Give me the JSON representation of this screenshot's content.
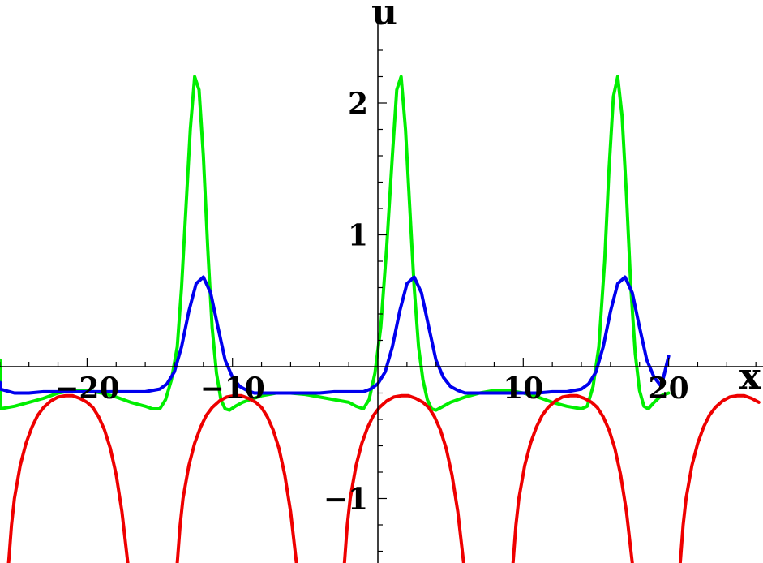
{
  "chart_data": {
    "type": "line",
    "xlabel": "x",
    "ylabel": "u",
    "xlim": [
      -27.2,
      27.0
    ],
    "ylim": [
      -1.5,
      2.5
    ],
    "x_ticks": [
      -20,
      -10,
      10,
      20
    ],
    "x_tick_labels": [
      "−20",
      "−10",
      "10",
      "20"
    ],
    "y_ticks": [
      -1,
      1,
      2
    ],
    "y_tick_labels": [
      "−1",
      "1",
      "2"
    ],
    "grid": false,
    "legend": "none",
    "series": [
      {
        "color": "#00ee00",
        "x": [
          -27,
          -26.8,
          -26.5,
          -26,
          -25,
          -24,
          -23,
          -22,
          -21,
          -20,
          -19,
          -18,
          -17,
          -16,
          -15.5,
          -15,
          -14.6,
          -14.2,
          -13.8,
          -13.5,
          -13.2,
          -12.9,
          -12.6,
          -12.3,
          -12.0,
          -11.7,
          -11.4,
          -11.1,
          -10.8,
          -10.5,
          -10.2,
          -9.8,
          -9.3,
          -8.8,
          -8,
          -7,
          -6,
          -5,
          -4,
          -3,
          -2,
          -1.5,
          -1,
          -0.6,
          -0.2,
          0.2,
          0.6,
          1.0,
          1.3,
          1.6,
          1.9,
          2.2,
          2.5,
          2.8,
          3.1,
          3.4,
          3.7,
          4.0,
          4.5,
          5,
          6,
          7,
          8,
          9,
          10,
          11,
          12,
          13,
          14,
          14.4,
          14.8,
          15.2,
          15.6,
          15.9,
          16.2,
          16.5,
          16.8,
          17.1,
          17.4,
          17.7,
          18.0,
          18.3,
          18.6,
          19.0,
          19.5,
          20
        ],
        "y": [
          0.05,
          -0.1,
          -0.25,
          -0.32,
          -0.3,
          -0.27,
          -0.24,
          -0.2,
          -0.18,
          -0.18,
          -0.2,
          -0.23,
          -0.27,
          -0.3,
          -0.32,
          -0.32,
          -0.25,
          -0.1,
          0.15,
          0.6,
          1.2,
          1.8,
          2.2,
          2.1,
          1.6,
          0.9,
          0.3,
          -0.05,
          -0.25,
          -0.32,
          -0.33,
          -0.3,
          -0.27,
          -0.25,
          -0.22,
          -0.2,
          -0.2,
          -0.21,
          -0.23,
          -0.25,
          -0.27,
          -0.3,
          -0.32,
          -0.25,
          -0.05,
          0.3,
          0.9,
          1.6,
          2.1,
          2.2,
          1.8,
          1.2,
          0.6,
          0.15,
          -0.1,
          -0.25,
          -0.32,
          -0.33,
          -0.3,
          -0.27,
          -0.23,
          -0.2,
          -0.18,
          -0.18,
          -0.2,
          -0.23,
          -0.27,
          -0.3,
          -0.32,
          -0.3,
          -0.15,
          0.15,
          0.8,
          1.5,
          2.05,
          2.2,
          1.9,
          1.3,
          0.6,
          0.1,
          -0.18,
          -0.3,
          -0.32,
          -0.27,
          -0.22,
          -0.2
        ]
      },
      {
        "color": "#0000ee",
        "x": [
          -27,
          -26,
          -25,
          -24,
          -23,
          -22,
          -21,
          -20,
          -19,
          -18,
          -17,
          -16,
          -15,
          -14.5,
          -14,
          -13.5,
          -13,
          -12.5,
          -12,
          -11.5,
          -11,
          -10.5,
          -10,
          -9.5,
          -9,
          -8.5,
          -8,
          -7,
          -6,
          -5,
          -4,
          -3,
          -2,
          -1,
          -0.5,
          0,
          0.5,
          1,
          1.5,
          2,
          2.5,
          3,
          3.5,
          4,
          4.5,
          5,
          5.5,
          6,
          6.5,
          7,
          8,
          9,
          10,
          11,
          12,
          13,
          14,
          14.5,
          15,
          15.5,
          16,
          16.5,
          17,
          17.5,
          18,
          18.5,
          19,
          19.5,
          20
        ],
        "y": [
          -0.12,
          -0.17,
          -0.2,
          -0.2,
          -0.19,
          -0.19,
          -0.19,
          -0.19,
          -0.19,
          -0.19,
          -0.19,
          -0.19,
          -0.17,
          -0.13,
          -0.04,
          0.15,
          0.42,
          0.63,
          0.68,
          0.56,
          0.3,
          0.05,
          -0.08,
          -0.15,
          -0.18,
          -0.2,
          -0.2,
          -0.2,
          -0.2,
          -0.2,
          -0.2,
          -0.19,
          -0.19,
          -0.19,
          -0.17,
          -0.13,
          -0.04,
          0.15,
          0.42,
          0.63,
          0.68,
          0.56,
          0.3,
          0.05,
          -0.08,
          -0.15,
          -0.18,
          -0.2,
          -0.2,
          -0.2,
          -0.2,
          -0.2,
          -0.2,
          -0.2,
          -0.19,
          -0.19,
          -0.17,
          -0.13,
          -0.04,
          0.15,
          0.42,
          0.63,
          0.68,
          0.56,
          0.3,
          0.05,
          -0.08,
          -0.15,
          0.08
        ]
      },
      {
        "color": "#ee0000",
        "segments": [
          {
            "x": [
              -25.4,
              -25.2,
              -25,
              -24.6,
              -24.2,
              -23.8,
              -23.4,
              -23,
              -22.5,
              -22,
              -21.5,
              -21,
              -20.5,
              -20,
              -19.6,
              -19.2,
              -18.8,
              -18.4,
              -18,
              -17.6,
              -17.2
            ],
            "y": [
              -1.5,
              -1.2,
              -1.0,
              -0.75,
              -0.58,
              -0.46,
              -0.37,
              -0.31,
              -0.26,
              -0.23,
              -0.22,
              -0.22,
              -0.24,
              -0.27,
              -0.31,
              -0.38,
              -0.48,
              -0.62,
              -0.82,
              -1.1,
              -1.5
            ]
          },
          {
            "x": [
              -13.8,
              -13.6,
              -13.4,
              -13,
              -12.6,
              -12.2,
              -11.8,
              -11.4,
              -10.9,
              -10.4,
              -9.9,
              -9.4,
              -8.9,
              -8.4,
              -8,
              -7.6,
              -7.2,
              -6.8,
              -6.4,
              -6,
              -5.6
            ],
            "y": [
              -1.5,
              -1.2,
              -1.0,
              -0.75,
              -0.58,
              -0.46,
              -0.37,
              -0.31,
              -0.26,
              -0.23,
              -0.22,
              -0.22,
              -0.24,
              -0.27,
              -0.31,
              -0.38,
              -0.48,
              -0.62,
              -0.82,
              -1.1,
              -1.5
            ]
          },
          {
            "x": [
              -2.3,
              -2.1,
              -1.9,
              -1.5,
              -1.1,
              -0.7,
              -0.3,
              0.1,
              0.6,
              1.1,
              1.6,
              2.1,
              2.6,
              3.1,
              3.5,
              3.9,
              4.3,
              4.7,
              5.1,
              5.5,
              5.9
            ],
            "y": [
              -1.5,
              -1.2,
              -1.0,
              -0.75,
              -0.58,
              -0.46,
              -0.37,
              -0.31,
              -0.26,
              -0.23,
              -0.22,
              -0.22,
              -0.24,
              -0.27,
              -0.31,
              -0.38,
              -0.48,
              -0.62,
              -0.82,
              -1.1,
              -1.5
            ]
          },
          {
            "x": [
              9.3,
              9.5,
              9.7,
              10.1,
              10.5,
              10.9,
              11.3,
              11.7,
              12.2,
              12.7,
              13.2,
              13.7,
              14.2,
              14.7,
              15.1,
              15.5,
              15.9,
              16.3,
              16.7,
              17.1,
              17.5
            ],
            "y": [
              -1.5,
              -1.2,
              -1.0,
              -0.75,
              -0.58,
              -0.46,
              -0.37,
              -0.31,
              -0.26,
              -0.23,
              -0.22,
              -0.22,
              -0.24,
              -0.27,
              -0.31,
              -0.38,
              -0.48,
              -0.62,
              -0.82,
              -1.1,
              -1.5
            ]
          },
          {
            "x": [
              20.8,
              21.0,
              21.2,
              21.6,
              22.0,
              22.4,
              22.8,
              23.2,
              23.7,
              24.2,
              24.7,
              25.2,
              25.7,
              26.2
            ],
            "y": [
              -1.5,
              -1.2,
              -1.0,
              -0.75,
              -0.58,
              -0.46,
              -0.37,
              -0.31,
              -0.26,
              -0.23,
              -0.22,
              -0.22,
              -0.24,
              -0.27
            ]
          }
        ]
      }
    ]
  }
}
